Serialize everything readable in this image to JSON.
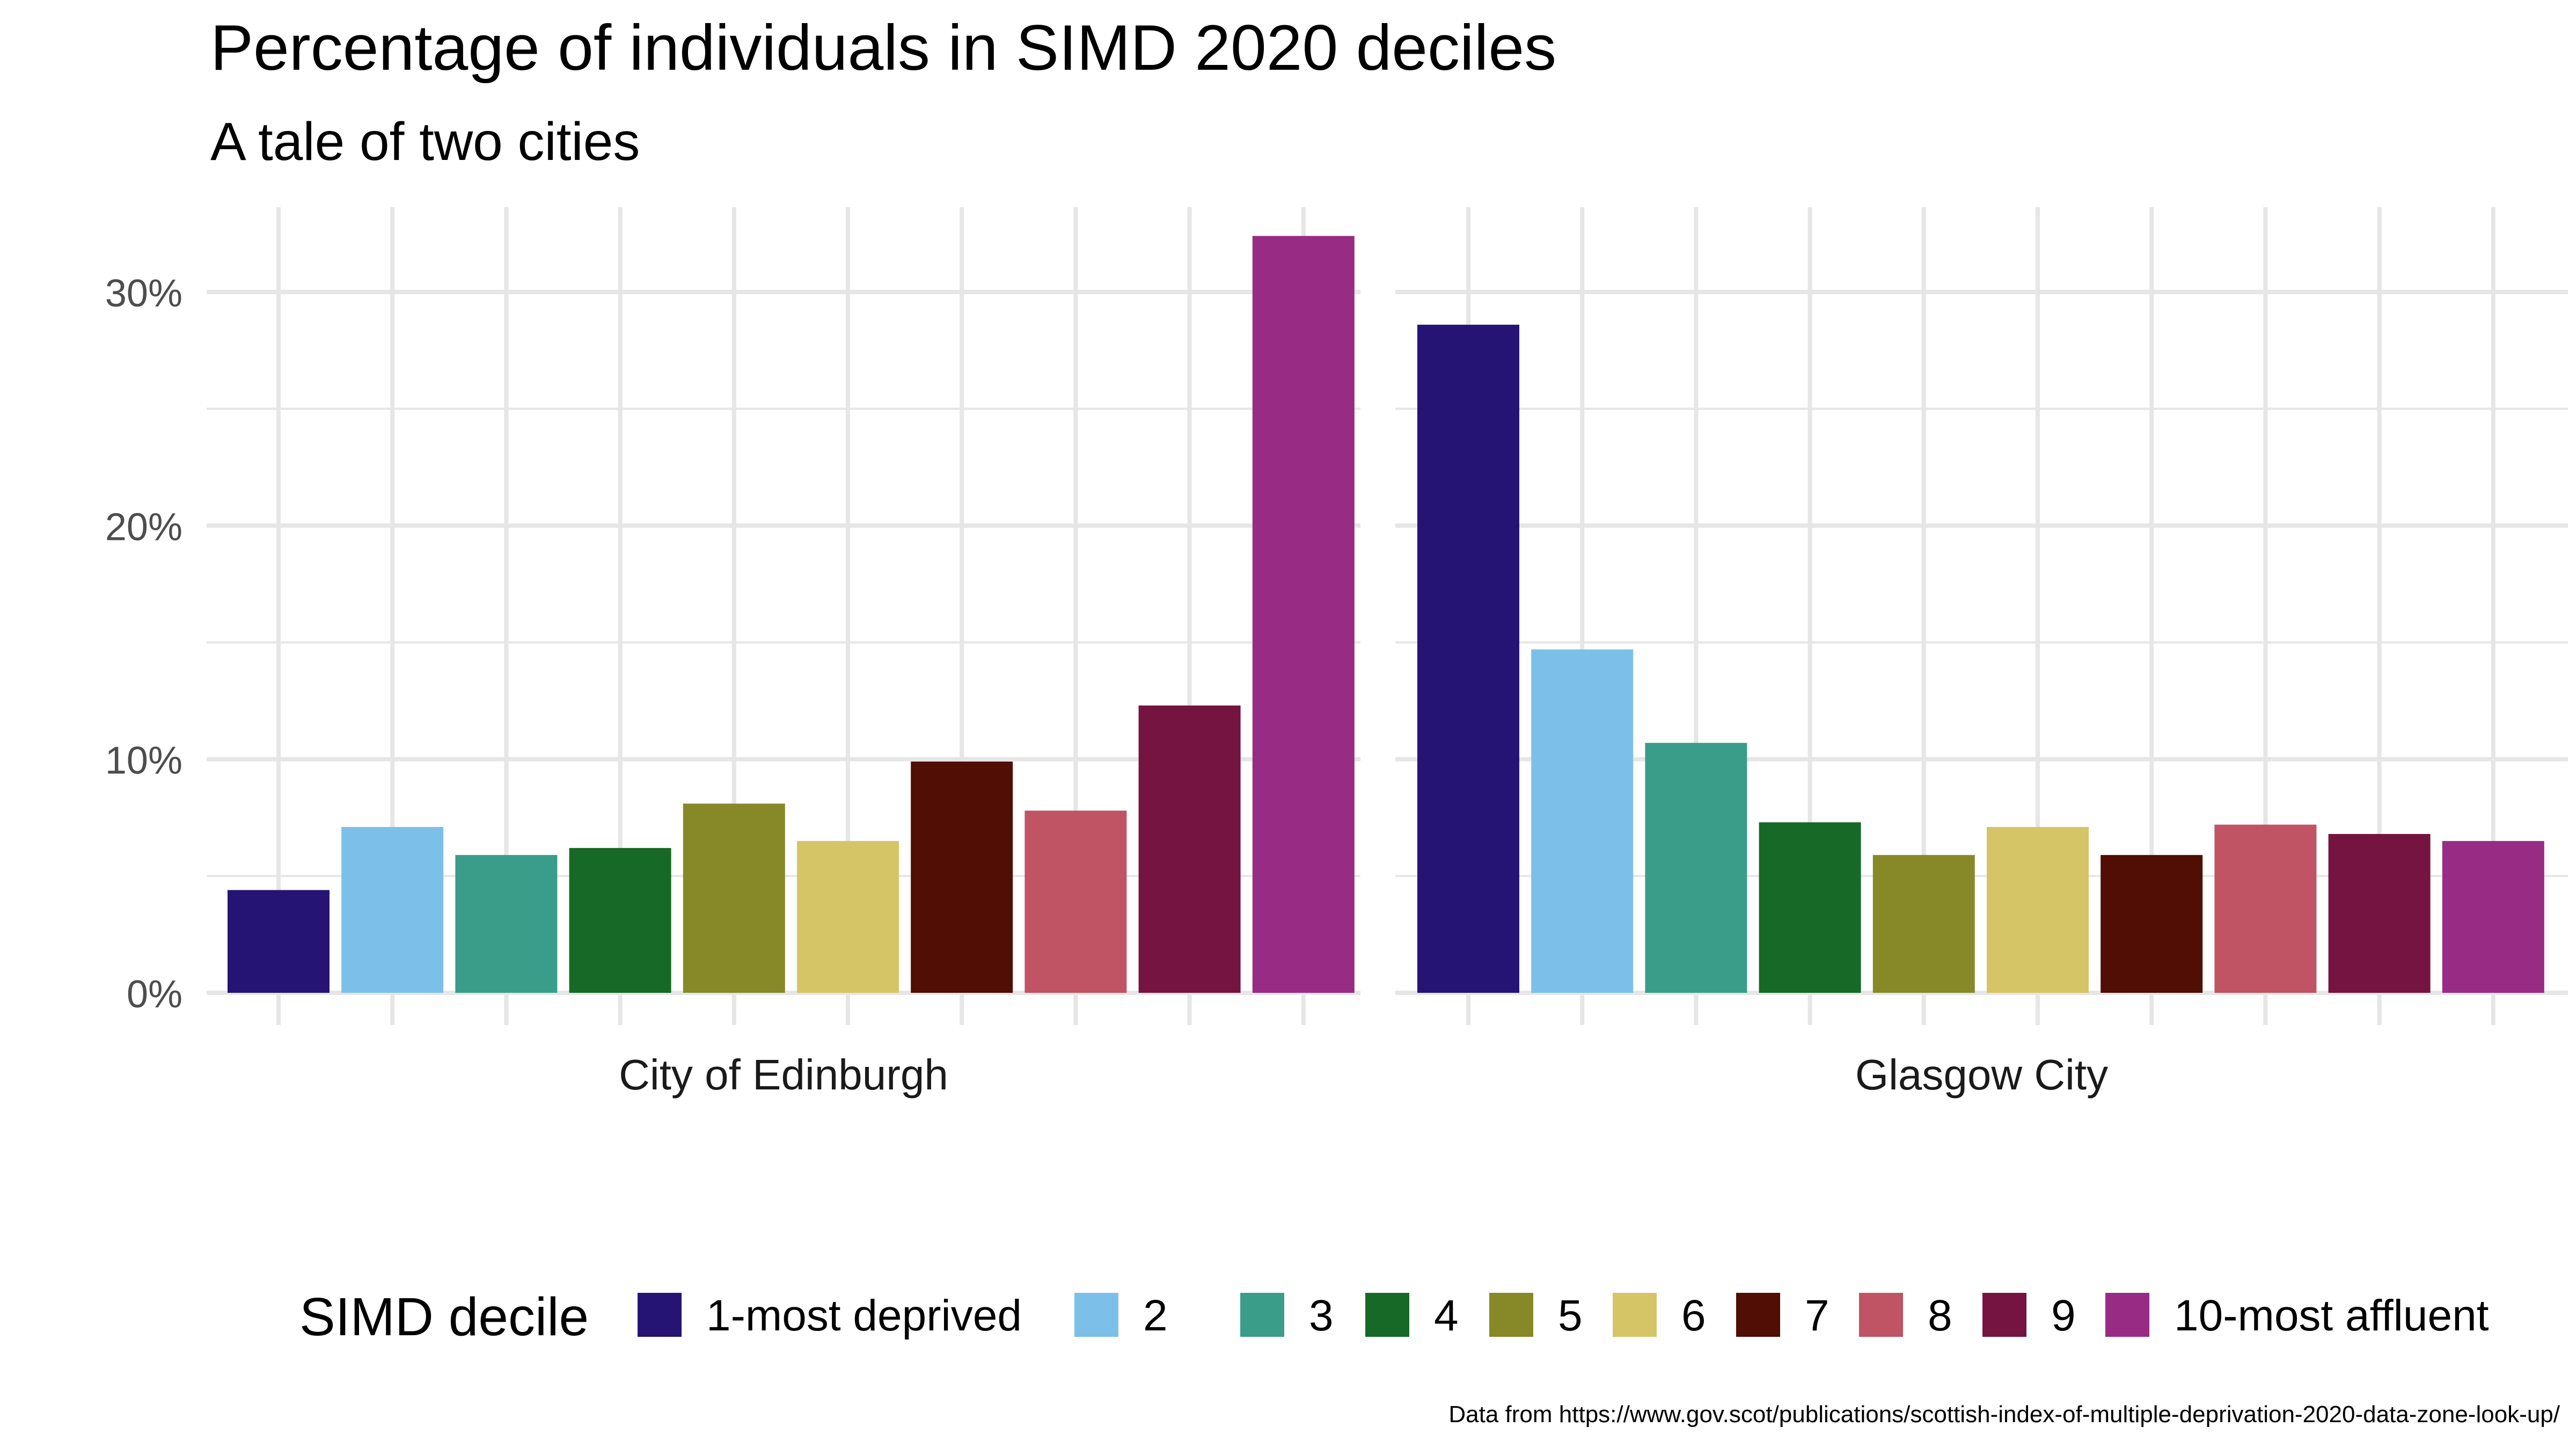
{
  "chart_data": {
    "type": "bar",
    "title": "Percentage of individuals in SIMD 2020 deciles",
    "subtitle": "A tale of two cities",
    "ylabel": "",
    "xlabel": "",
    "ylim": [
      0,
      34
    ],
    "y_ticks": [
      0,
      10,
      20,
      30
    ],
    "y_tick_labels": [
      "0%",
      "10%",
      "20%",
      "30%"
    ],
    "grid": true,
    "legend_position": "bottom",
    "legend_title": "SIMD decile",
    "categories": [
      "1-most deprived",
      "2",
      "3",
      "4",
      "5",
      "6",
      "7",
      "8",
      "9",
      "10-most affluent"
    ],
    "colors": [
      "#251474",
      "#7cc0e9",
      "#3a9d89",
      "#176928",
      "#878828",
      "#d6c566",
      "#500e05",
      "#c05464",
      "#751341",
      "#982c85"
    ],
    "facets": [
      {
        "name": "City of Edinburgh",
        "values": [
          4.4,
          7.1,
          5.9,
          6.2,
          8.1,
          6.5,
          9.9,
          7.8,
          12.3,
          32.4
        ]
      },
      {
        "name": "Glasgow City",
        "values": [
          28.6,
          14.7,
          10.7,
          7.3,
          5.9,
          7.1,
          5.9,
          7.2,
          6.8,
          6.5
        ]
      }
    ],
    "caption": "Data from https://www.gov.scot/publications/scottish-index-of-multiple-deprivation-2020-data-zone-look-up/"
  }
}
